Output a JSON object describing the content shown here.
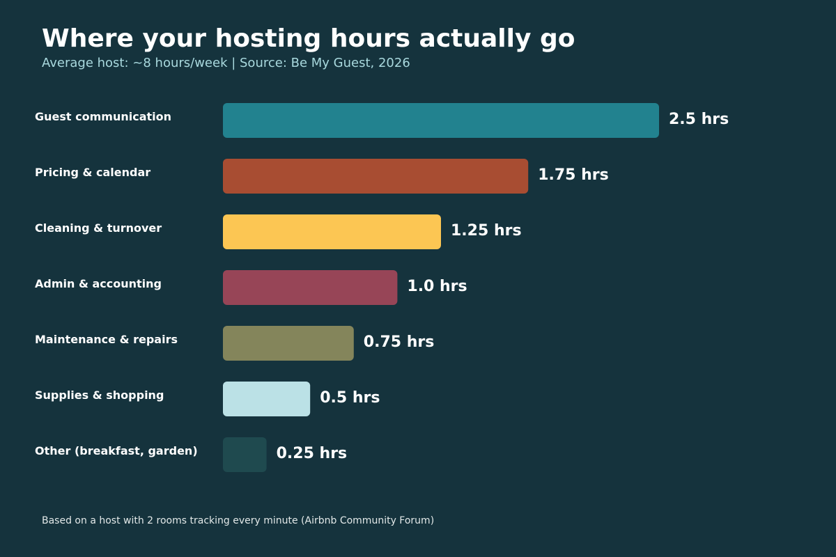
{
  "header": {
    "title": "Where your hosting hours actually go",
    "subtitle": "Average host: ~8 hours/week  |  Source: Be My Guest, 2026"
  },
  "footer": {
    "note": "Based on a host with 2 rooms tracking every minute (Airbnb Community Forum)"
  },
  "colors": {
    "background": "#15333d"
  },
  "chart_data": {
    "type": "bar",
    "orientation": "horizontal",
    "title": "Where your hosting hours actually go",
    "subtitle": "Average host: ~8 hours/week  |  Source: Be My Guest, 2026",
    "xlabel": "",
    "ylabel": "",
    "grid": false,
    "legend": "none",
    "xlim": [
      0,
      2.5
    ],
    "categories": [
      "Guest communication",
      "Pricing & calendar",
      "Cleaning & turnover",
      "Admin & accounting",
      "Maintenance & repairs",
      "Supplies & shopping",
      "Other (breakfast, garden)"
    ],
    "values": [
      2.5,
      1.75,
      1.25,
      1.0,
      0.75,
      0.5,
      0.25
    ],
    "value_labels": [
      "2.5 hrs",
      "1.75 hrs",
      "1.25 hrs",
      "1.0 hrs",
      "0.75 hrs",
      "0.5 hrs",
      "0.25 hrs"
    ],
    "bar_colors": [
      "#22828f",
      "#a84d32",
      "#fcc653",
      "#974557",
      "#84855b",
      "#bbe1e6",
      "#1f4a4f"
    ]
  }
}
